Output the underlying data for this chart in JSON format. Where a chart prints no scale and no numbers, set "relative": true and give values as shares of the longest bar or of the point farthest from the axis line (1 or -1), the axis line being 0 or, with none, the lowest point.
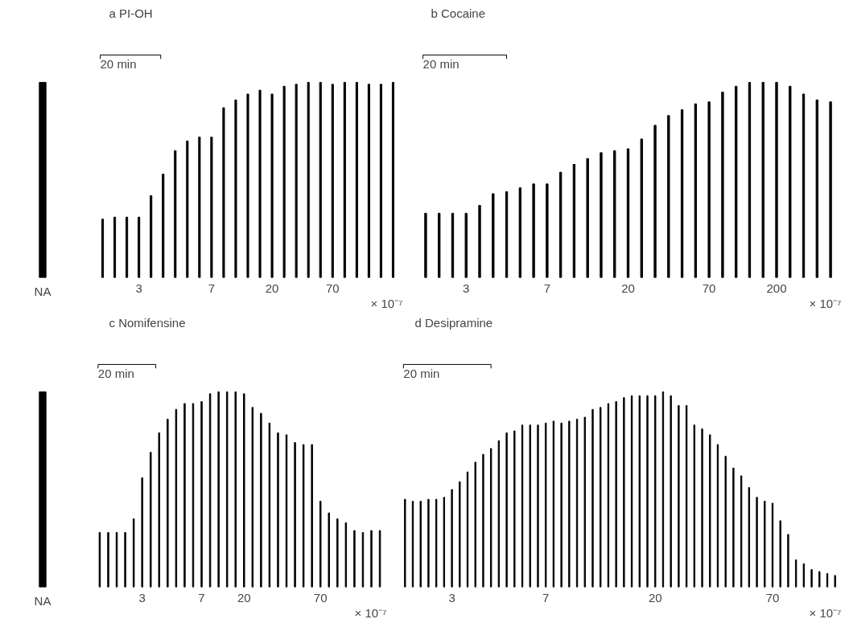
{
  "chart_data": [
    {
      "type": "bar",
      "relative": true,
      "categories": [
        "NA"
      ],
      "values": [
        1
      ],
      "color": "#000000"
    },
    {
      "type": "bar",
      "relative": true,
      "title": "a  PI-OH",
      "xlabel": "× 10⁻⁷",
      "annotations": [
        "20 min"
      ],
      "color": "#000000",
      "categories": [
        null,
        null,
        null,
        "3",
        null,
        null,
        null,
        null,
        null,
        "7",
        null,
        null,
        null,
        null,
        "20",
        null,
        null,
        null,
        null,
        "70",
        null,
        null,
        null,
        null,
        null
      ],
      "values": [
        0.3,
        0.31,
        0.31,
        0.31,
        0.42,
        0.53,
        0.65,
        0.7,
        0.72,
        0.72,
        0.87,
        0.91,
        0.94,
        0.96,
        0.94,
        0.98,
        0.99,
        1.0,
        1.0,
        0.99,
        1.0,
        1.0,
        0.99,
        0.99,
        1.0
      ]
    },
    {
      "type": "bar",
      "relative": true,
      "title": "b  Cocaine",
      "xlabel": "× 10⁻⁷",
      "annotations": [
        "20 min"
      ],
      "color": "#000000",
      "categories": [
        null,
        null,
        null,
        "3",
        null,
        null,
        null,
        null,
        null,
        "7",
        null,
        null,
        null,
        null,
        null,
        "20",
        null,
        null,
        null,
        null,
        null,
        "70",
        null,
        null,
        null,
        null,
        "200",
        null,
        null,
        null,
        null
      ],
      "values": [
        0.33,
        0.33,
        0.33,
        0.33,
        0.37,
        0.43,
        0.44,
        0.46,
        0.48,
        0.48,
        0.54,
        0.58,
        0.61,
        0.64,
        0.65,
        0.66,
        0.71,
        0.78,
        0.83,
        0.86,
        0.89,
        0.9,
        0.95,
        0.98,
        1.0,
        1.0,
        1.0,
        0.98,
        0.94,
        0.91,
        0.9
      ]
    },
    {
      "type": "bar",
      "relative": true,
      "categories": [
        "NA"
      ],
      "values": [
        1
      ],
      "color": "#000000"
    },
    {
      "type": "bar",
      "relative": true,
      "title": "c  Nomifensine",
      "xlabel": "× 10⁻⁷",
      "annotations": [
        "20 min"
      ],
      "color": "#000000",
      "categories": [
        null,
        null,
        null,
        null,
        null,
        "3",
        null,
        null,
        null,
        null,
        null,
        null,
        "7",
        null,
        null,
        null,
        null,
        "20",
        null,
        null,
        null,
        null,
        null,
        null,
        null,
        null,
        "70",
        null,
        null,
        null,
        null,
        null,
        null,
        null
      ],
      "values": [
        0.28,
        0.28,
        0.28,
        0.28,
        0.35,
        0.56,
        0.69,
        0.79,
        0.86,
        0.91,
        0.94,
        0.94,
        0.95,
        0.99,
        1.0,
        1.0,
        1.0,
        0.99,
        0.92,
        0.89,
        0.84,
        0.79,
        0.78,
        0.74,
        0.73,
        0.73,
        0.44,
        0.38,
        0.35,
        0.33,
        0.29,
        0.28,
        0.29,
        0.29
      ]
    },
    {
      "type": "bar",
      "relative": true,
      "title": "d  Desipramine",
      "xlabel": "× 10⁻⁷",
      "annotations": [
        "20 min"
      ],
      "color": "#000000",
      "categories": [
        null,
        null,
        null,
        null,
        null,
        null,
        "3",
        null,
        null,
        null,
        null,
        null,
        null,
        null,
        null,
        null,
        null,
        null,
        "7",
        null,
        null,
        null,
        null,
        null,
        null,
        null,
        null,
        null,
        null,
        null,
        null,
        null,
        "20",
        null,
        null,
        null,
        null,
        null,
        null,
        null,
        null,
        null,
        null,
        null,
        null,
        null,
        null,
        "70",
        null,
        null,
        null,
        null,
        null,
        null,
        null,
        null
      ],
      "values": [
        0.45,
        0.44,
        0.44,
        0.45,
        0.45,
        0.46,
        0.5,
        0.54,
        0.59,
        0.64,
        0.68,
        0.71,
        0.75,
        0.79,
        0.8,
        0.83,
        0.83,
        0.83,
        0.84,
        0.85,
        0.84,
        0.85,
        0.86,
        0.87,
        0.91,
        0.92,
        0.94,
        0.95,
        0.97,
        0.98,
        0.98,
        0.98,
        0.98,
        1.0,
        0.98,
        0.93,
        0.93,
        0.83,
        0.81,
        0.78,
        0.73,
        0.67,
        0.61,
        0.57,
        0.51,
        0.46,
        0.44,
        0.43,
        0.34,
        0.27,
        0.14,
        0.12,
        0.09,
        0.08,
        0.07,
        0.06
      ]
    }
  ]
}
